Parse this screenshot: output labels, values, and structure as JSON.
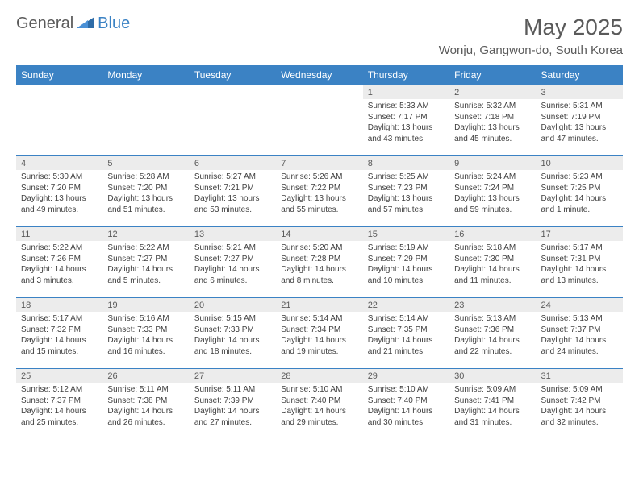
{
  "brand": {
    "part1": "General",
    "part2": "Blue"
  },
  "title": "May 2025",
  "location": "Wonju, Gangwon-do, South Korea",
  "colors": {
    "accent": "#3b82c4",
    "header_bg": "#3b82c4",
    "header_text": "#ffffff",
    "daynum_bg": "#ececec",
    "text_muted": "#5a5a5a",
    "text_body": "#404040",
    "page_bg": "#ffffff"
  },
  "typography": {
    "title_fontsize": 28,
    "location_fontsize": 15,
    "header_fontsize": 12,
    "daynum_fontsize": 11,
    "body_fontsize": 10
  },
  "weekdays": [
    "Sunday",
    "Monday",
    "Tuesday",
    "Wednesday",
    "Thursday",
    "Friday",
    "Saturday"
  ],
  "labels": {
    "sunrise": "Sunrise:",
    "sunset": "Sunset:",
    "daylight": "Daylight:"
  },
  "weeks": [
    [
      {
        "day": null
      },
      {
        "day": null
      },
      {
        "day": null
      },
      {
        "day": null
      },
      {
        "day": "1",
        "sunrise": "5:33 AM",
        "sunset": "7:17 PM",
        "daylight": "13 hours and 43 minutes."
      },
      {
        "day": "2",
        "sunrise": "5:32 AM",
        "sunset": "7:18 PM",
        "daylight": "13 hours and 45 minutes."
      },
      {
        "day": "3",
        "sunrise": "5:31 AM",
        "sunset": "7:19 PM",
        "daylight": "13 hours and 47 minutes."
      }
    ],
    [
      {
        "day": "4",
        "sunrise": "5:30 AM",
        "sunset": "7:20 PM",
        "daylight": "13 hours and 49 minutes."
      },
      {
        "day": "5",
        "sunrise": "5:28 AM",
        "sunset": "7:20 PM",
        "daylight": "13 hours and 51 minutes."
      },
      {
        "day": "6",
        "sunrise": "5:27 AM",
        "sunset": "7:21 PM",
        "daylight": "13 hours and 53 minutes."
      },
      {
        "day": "7",
        "sunrise": "5:26 AM",
        "sunset": "7:22 PM",
        "daylight": "13 hours and 55 minutes."
      },
      {
        "day": "8",
        "sunrise": "5:25 AM",
        "sunset": "7:23 PM",
        "daylight": "13 hours and 57 minutes."
      },
      {
        "day": "9",
        "sunrise": "5:24 AM",
        "sunset": "7:24 PM",
        "daylight": "13 hours and 59 minutes."
      },
      {
        "day": "10",
        "sunrise": "5:23 AM",
        "sunset": "7:25 PM",
        "daylight": "14 hours and 1 minute."
      }
    ],
    [
      {
        "day": "11",
        "sunrise": "5:22 AM",
        "sunset": "7:26 PM",
        "daylight": "14 hours and 3 minutes."
      },
      {
        "day": "12",
        "sunrise": "5:22 AM",
        "sunset": "7:27 PM",
        "daylight": "14 hours and 5 minutes."
      },
      {
        "day": "13",
        "sunrise": "5:21 AM",
        "sunset": "7:27 PM",
        "daylight": "14 hours and 6 minutes."
      },
      {
        "day": "14",
        "sunrise": "5:20 AM",
        "sunset": "7:28 PM",
        "daylight": "14 hours and 8 minutes."
      },
      {
        "day": "15",
        "sunrise": "5:19 AM",
        "sunset": "7:29 PM",
        "daylight": "14 hours and 10 minutes."
      },
      {
        "day": "16",
        "sunrise": "5:18 AM",
        "sunset": "7:30 PM",
        "daylight": "14 hours and 11 minutes."
      },
      {
        "day": "17",
        "sunrise": "5:17 AM",
        "sunset": "7:31 PM",
        "daylight": "14 hours and 13 minutes."
      }
    ],
    [
      {
        "day": "18",
        "sunrise": "5:17 AM",
        "sunset": "7:32 PM",
        "daylight": "14 hours and 15 minutes."
      },
      {
        "day": "19",
        "sunrise": "5:16 AM",
        "sunset": "7:33 PM",
        "daylight": "14 hours and 16 minutes."
      },
      {
        "day": "20",
        "sunrise": "5:15 AM",
        "sunset": "7:33 PM",
        "daylight": "14 hours and 18 minutes."
      },
      {
        "day": "21",
        "sunrise": "5:14 AM",
        "sunset": "7:34 PM",
        "daylight": "14 hours and 19 minutes."
      },
      {
        "day": "22",
        "sunrise": "5:14 AM",
        "sunset": "7:35 PM",
        "daylight": "14 hours and 21 minutes."
      },
      {
        "day": "23",
        "sunrise": "5:13 AM",
        "sunset": "7:36 PM",
        "daylight": "14 hours and 22 minutes."
      },
      {
        "day": "24",
        "sunrise": "5:13 AM",
        "sunset": "7:37 PM",
        "daylight": "14 hours and 24 minutes."
      }
    ],
    [
      {
        "day": "25",
        "sunrise": "5:12 AM",
        "sunset": "7:37 PM",
        "daylight": "14 hours and 25 minutes."
      },
      {
        "day": "26",
        "sunrise": "5:11 AM",
        "sunset": "7:38 PM",
        "daylight": "14 hours and 26 minutes."
      },
      {
        "day": "27",
        "sunrise": "5:11 AM",
        "sunset": "7:39 PM",
        "daylight": "14 hours and 27 minutes."
      },
      {
        "day": "28",
        "sunrise": "5:10 AM",
        "sunset": "7:40 PM",
        "daylight": "14 hours and 29 minutes."
      },
      {
        "day": "29",
        "sunrise": "5:10 AM",
        "sunset": "7:40 PM",
        "daylight": "14 hours and 30 minutes."
      },
      {
        "day": "30",
        "sunrise": "5:09 AM",
        "sunset": "7:41 PM",
        "daylight": "14 hours and 31 minutes."
      },
      {
        "day": "31",
        "sunrise": "5:09 AM",
        "sunset": "7:42 PM",
        "daylight": "14 hours and 32 minutes."
      }
    ]
  ]
}
